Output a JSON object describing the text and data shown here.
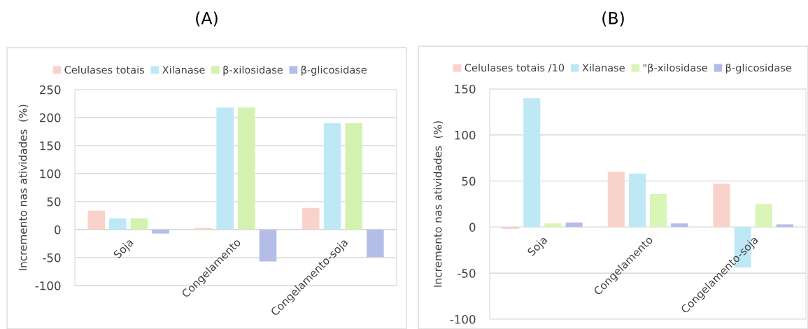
{
  "chart_data": [
    {
      "type": "bar",
      "title": "(A)",
      "ylabel": "Incremento nas atividades  (%)",
      "categories": [
        "Soja",
        "Congelamento",
        "Congelamento-soja"
      ],
      "series": [
        {
          "name": "Celulases totais",
          "color": "#f9d3cb",
          "values": [
            34,
            3,
            39
          ]
        },
        {
          "name": "Xilanase",
          "color": "#bfe8f7",
          "values": [
            20,
            218,
            190
          ]
        },
        {
          "name": "β-xilosidase",
          "color": "#d3f2b0",
          "values": [
            20,
            218,
            190
          ]
        },
        {
          "name": "β-glicosidase",
          "color": "#b4bce8",
          "values": [
            -7,
            -57,
            -49
          ]
        }
      ],
      "ylim": [
        -100,
        250
      ],
      "yticks": [
        -100,
        -50,
        0,
        50,
        100,
        150,
        200,
        250
      ],
      "grid": "y",
      "legend": "top"
    },
    {
      "type": "bar",
      "title": "(B)",
      "ylabel": "Incremento nas atividades  (%)",
      "categories": [
        "Soja",
        "Congelamento",
        "Congelamento-soja"
      ],
      "series": [
        {
          "name": "Celulases totais /10",
          "color": "#f9d3cb",
          "values": [
            -2,
            60,
            47
          ]
        },
        {
          "name": "Xilanase",
          "color": "#bfe8f7",
          "values": [
            140,
            58,
            -44
          ]
        },
        {
          "name": "\"β-xilosidase",
          "color": "#d9f5b8",
          "values": [
            4,
            36,
            25
          ]
        },
        {
          "name": "β-glicosidase",
          "color": "#b4bce8",
          "values": [
            5,
            4,
            3
          ]
        }
      ],
      "ylim": [
        -100,
        150
      ],
      "yticks": [
        -100,
        -50,
        0,
        50,
        100,
        150
      ],
      "grid": "y",
      "legend": "top"
    }
  ]
}
